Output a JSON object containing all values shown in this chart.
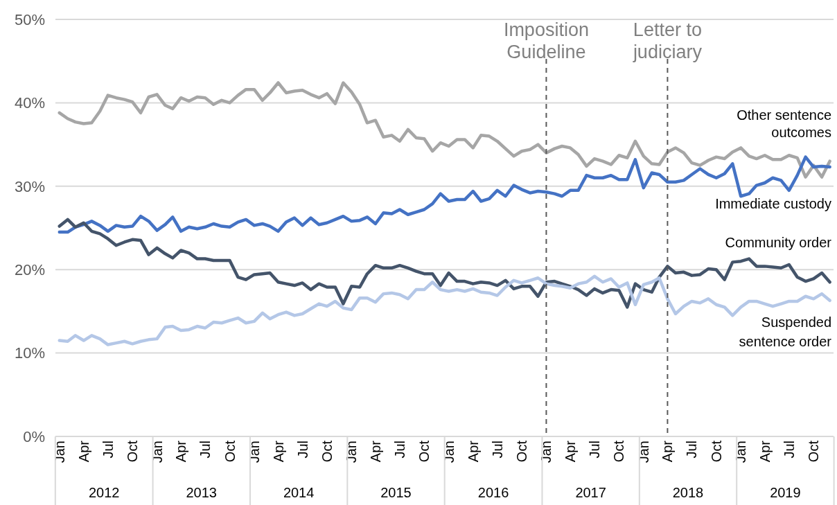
{
  "chart_data": {
    "type": "line",
    "x": [
      "2012-01",
      "2012-02",
      "2012-03",
      "2012-04",
      "2012-05",
      "2012-06",
      "2012-07",
      "2012-08",
      "2012-09",
      "2012-10",
      "2012-11",
      "2012-12",
      "2013-01",
      "2013-02",
      "2013-03",
      "2013-04",
      "2013-05",
      "2013-06",
      "2013-07",
      "2013-08",
      "2013-09",
      "2013-10",
      "2013-11",
      "2013-12",
      "2014-01",
      "2014-02",
      "2014-03",
      "2014-04",
      "2014-05",
      "2014-06",
      "2014-07",
      "2014-08",
      "2014-09",
      "2014-10",
      "2014-11",
      "2014-12",
      "2015-01",
      "2015-02",
      "2015-03",
      "2015-04",
      "2015-05",
      "2015-06",
      "2015-07",
      "2015-08",
      "2015-09",
      "2015-10",
      "2015-11",
      "2015-12",
      "2016-01",
      "2016-02",
      "2016-03",
      "2016-04",
      "2016-05",
      "2016-06",
      "2016-07",
      "2016-08",
      "2016-09",
      "2016-10",
      "2016-11",
      "2016-12",
      "2017-01",
      "2017-02",
      "2017-03",
      "2017-04",
      "2017-05",
      "2017-06",
      "2017-07",
      "2017-08",
      "2017-09",
      "2017-10",
      "2017-11",
      "2017-12",
      "2018-01",
      "2018-02",
      "2018-03",
      "2018-04",
      "2018-05",
      "2018-06",
      "2018-07",
      "2018-08",
      "2018-09",
      "2018-10",
      "2018-11",
      "2018-12",
      "2019-01",
      "2019-02",
      "2019-03",
      "2019-04",
      "2019-05",
      "2019-06",
      "2019-07",
      "2019-08",
      "2019-09",
      "2019-10",
      "2019-11",
      "2019-12"
    ],
    "series": [
      {
        "name": "Other sentence outcomes",
        "color": "#a6a6a6",
        "values": [
          38.8,
          38.1,
          37.7,
          37.5,
          37.6,
          39.0,
          40.9,
          40.6,
          40.4,
          40.1,
          38.8,
          40.7,
          41.0,
          39.7,
          39.3,
          40.6,
          40.2,
          40.7,
          40.6,
          39.8,
          40.3,
          40.0,
          40.9,
          41.6,
          41.6,
          40.3,
          41.2,
          42.4,
          41.2,
          41.4,
          41.5,
          41.0,
          40.6,
          41.1,
          39.9,
          42.4,
          41.3,
          39.8,
          37.6,
          37.9,
          35.9,
          36.1,
          35.4,
          36.8,
          35.8,
          35.7,
          34.2,
          35.2,
          34.8,
          35.6,
          35.6,
          34.6,
          36.1,
          36.0,
          35.4,
          34.5,
          33.6,
          34.2,
          34.4,
          35.0,
          34.0,
          34.5,
          34.8,
          34.6,
          33.8,
          32.4,
          33.3,
          33.0,
          32.6,
          33.7,
          33.4,
          35.4,
          33.6,
          32.7,
          32.6,
          34.1,
          34.6,
          34.0,
          32.8,
          32.5,
          33.1,
          33.5,
          33.3,
          34.1,
          34.6,
          33.6,
          33.3,
          33.7,
          33.2,
          33.2,
          33.7,
          33.4,
          31.1,
          32.5,
          31.1,
          33.0
        ]
      },
      {
        "name": "Immediate custody",
        "color": "#4472c4",
        "values": [
          24.5,
          24.5,
          25.1,
          25.4,
          25.8,
          25.3,
          24.6,
          25.3,
          25.1,
          25.2,
          26.4,
          25.8,
          24.7,
          25.4,
          26.3,
          24.6,
          25.1,
          24.9,
          25.1,
          25.5,
          25.2,
          25.1,
          25.7,
          26.0,
          25.3,
          25.5,
          25.2,
          24.6,
          25.7,
          26.2,
          25.3,
          26.2,
          25.4,
          25.6,
          26.0,
          26.4,
          25.8,
          25.9,
          26.3,
          25.5,
          26.8,
          26.7,
          27.2,
          26.6,
          26.9,
          27.2,
          27.9,
          29.1,
          28.2,
          28.4,
          28.4,
          29.4,
          28.2,
          28.5,
          29.5,
          28.8,
          30.1,
          29.6,
          29.2,
          29.4,
          29.3,
          29.1,
          28.8,
          29.5,
          29.5,
          31.3,
          31.0,
          31.0,
          31.3,
          30.8,
          30.8,
          33.2,
          29.8,
          31.6,
          31.4,
          30.5,
          30.5,
          30.7,
          31.4,
          32.1,
          31.4,
          31.0,
          31.5,
          32.7,
          28.8,
          29.1,
          30.1,
          30.4,
          31.0,
          30.7,
          29.5,
          31.3,
          33.5,
          32.3,
          32.4,
          32.3
        ]
      },
      {
        "name": "Community order",
        "color": "#44546a",
        "values": [
          25.2,
          26.0,
          25.1,
          25.6,
          24.6,
          24.3,
          23.7,
          22.9,
          23.3,
          23.6,
          23.5,
          21.8,
          22.6,
          21.9,
          21.4,
          22.3,
          22.0,
          21.3,
          21.3,
          21.1,
          21.1,
          21.1,
          19.1,
          18.8,
          19.4,
          19.5,
          19.6,
          18.5,
          18.3,
          18.1,
          18.4,
          17.6,
          18.3,
          17.9,
          17.9,
          15.9,
          18.0,
          17.9,
          19.5,
          20.5,
          20.2,
          20.2,
          20.5,
          20.2,
          19.8,
          19.5,
          19.5,
          18.1,
          19.6,
          18.6,
          18.6,
          18.3,
          18.5,
          18.4,
          18.1,
          18.7,
          17.7,
          18.0,
          18.0,
          16.8,
          18.5,
          18.6,
          18.3,
          18.0,
          17.6,
          16.9,
          17.7,
          17.2,
          17.6,
          17.5,
          15.5,
          18.3,
          17.6,
          17.3,
          19.1,
          20.4,
          19.6,
          19.7,
          19.3,
          19.4,
          20.1,
          20.0,
          18.8,
          20.9,
          21.0,
          21.3,
          20.4,
          20.4,
          20.3,
          20.2,
          20.6,
          19.1,
          18.6,
          18.9,
          19.6,
          18.5
        ]
      },
      {
        "name": "Suspended sentence order",
        "color": "#b4c7e7",
        "values": [
          11.5,
          11.4,
          12.1,
          11.5,
          12.1,
          11.7,
          11.0,
          11.2,
          11.4,
          11.1,
          11.4,
          11.6,
          11.7,
          13.1,
          13.2,
          12.7,
          12.8,
          13.2,
          13.0,
          13.7,
          13.6,
          13.9,
          14.2,
          13.6,
          13.8,
          14.8,
          14.1,
          14.6,
          14.9,
          14.5,
          14.7,
          15.3,
          15.9,
          15.6,
          16.2,
          15.4,
          15.2,
          16.6,
          16.6,
          16.1,
          17.1,
          17.2,
          17.0,
          16.5,
          17.6,
          17.6,
          18.5,
          17.6,
          17.4,
          17.6,
          17.4,
          17.7,
          17.3,
          17.2,
          16.9,
          17.9,
          18.7,
          18.4,
          18.7,
          19.0,
          18.3,
          18.1,
          18.0,
          17.8,
          18.3,
          18.5,
          19.2,
          18.5,
          18.9,
          17.9,
          18.4,
          15.8,
          18.2,
          18.5,
          19.0,
          16.5,
          14.7,
          15.6,
          16.2,
          16.0,
          16.5,
          15.8,
          15.5,
          14.5,
          15.5,
          16.2,
          16.2,
          15.9,
          15.6,
          15.9,
          16.2,
          16.2,
          16.8,
          16.5,
          17.1,
          16.3
        ]
      }
    ],
    "xlim": [
      "2011-12-17",
      "2019-12-15"
    ],
    "xticks": [
      {
        "value": "2012-01",
        "label": "Jan"
      },
      {
        "value": "2012-04",
        "label": "Apr"
      },
      {
        "value": "2012-07",
        "label": "Jul"
      },
      {
        "value": "2012-10",
        "label": "Oct"
      },
      {
        "value": "2013-01",
        "label": "Jan"
      },
      {
        "value": "2013-04",
        "label": "Apr"
      },
      {
        "value": "2013-07",
        "label": "Jul"
      },
      {
        "value": "2013-10",
        "label": "Oct"
      },
      {
        "value": "2014-01",
        "label": "Jan"
      },
      {
        "value": "2014-04",
        "label": "Apr"
      },
      {
        "value": "2014-07",
        "label": "Jul"
      },
      {
        "value": "2014-10",
        "label": "Oct"
      },
      {
        "value": "2015-01",
        "label": "Jan"
      },
      {
        "value": "2015-04",
        "label": "Apr"
      },
      {
        "value": "2015-07",
        "label": "Jul"
      },
      {
        "value": "2015-10",
        "label": "Oct"
      },
      {
        "value": "2016-01",
        "label": "Jan"
      },
      {
        "value": "2016-04",
        "label": "Apr"
      },
      {
        "value": "2016-07",
        "label": "Jul"
      },
      {
        "value": "2016-10",
        "label": "Oct"
      },
      {
        "value": "2017-01",
        "label": "Jan"
      },
      {
        "value": "2017-04",
        "label": "Apr"
      },
      {
        "value": "2017-07",
        "label": "Jul"
      },
      {
        "value": "2017-10",
        "label": "Oct"
      },
      {
        "value": "2018-01",
        "label": "Jan"
      },
      {
        "value": "2018-04",
        "label": "Apr"
      },
      {
        "value": "2018-07",
        "label": "Jul"
      },
      {
        "value": "2018-10",
        "label": "Oct"
      },
      {
        "value": "2019-01",
        "label": "Jan"
      },
      {
        "value": "2019-04",
        "label": "Apr"
      },
      {
        "value": "2019-07",
        "label": "Jul"
      },
      {
        "value": "2019-10",
        "label": "Oct"
      }
    ],
    "ylim": [
      0,
      50
    ],
    "yticks": [
      {
        "value": 0,
        "label": "0%"
      },
      {
        "value": 10,
        "label": "10%"
      },
      {
        "value": 20,
        "label": "20%"
      },
      {
        "value": 30,
        "label": "30%"
      },
      {
        "value": 40,
        "label": "40%"
      },
      {
        "value": 50,
        "label": "50%"
      }
    ],
    "grid": "y",
    "legend": false,
    "marker": "none",
    "line_style": "solid",
    "ref_lines": [
      {
        "axis": "x",
        "value": "2017-01",
        "label": "Imposition Guideline",
        "color": "#595959",
        "line_style": "dashed"
      },
      {
        "axis": "x",
        "value": "2018-04",
        "label": "Letter to judiciary",
        "color": "#595959",
        "line_style": "dashed"
      }
    ],
    "annotations": [
      "2012",
      "2013",
      "2014",
      "2015",
      "2016",
      "2017",
      "2018",
      "2019"
    ]
  }
}
